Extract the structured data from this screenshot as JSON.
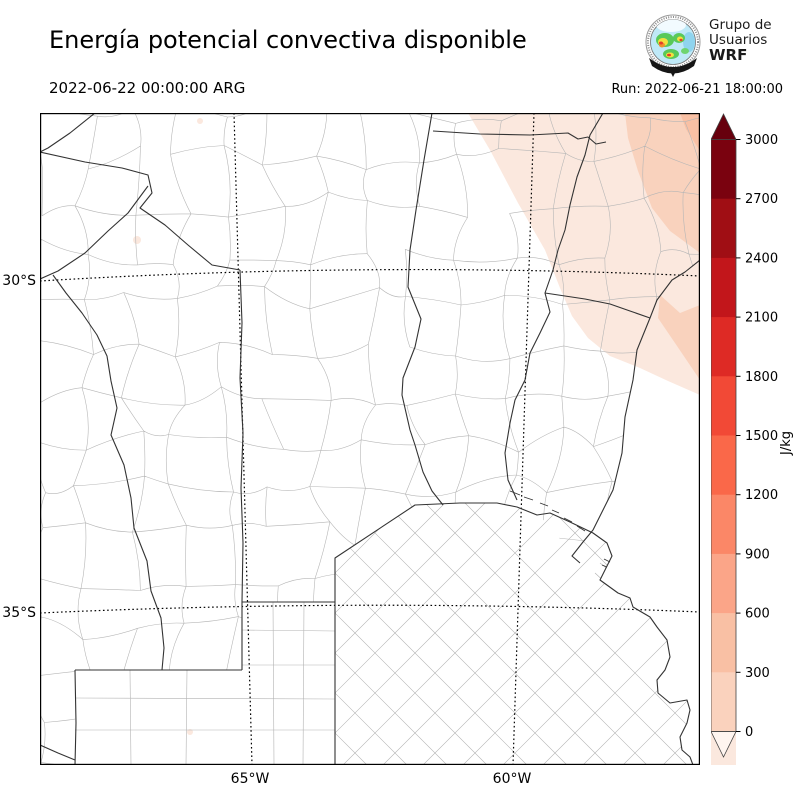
{
  "header": {
    "title": "Energía potencial convectiva disponible",
    "logo_lines": [
      "Grupo de",
      "Usuarios",
      "WRF"
    ]
  },
  "subheader": {
    "valid_time": "2022-06-22 00:00:00 ARG",
    "run_time": "Run: 2022-06-21 18:00:00"
  },
  "map": {
    "lat_labels": [
      "30°S",
      "35°S"
    ],
    "lon_labels": [
      "65°W",
      "60°W"
    ]
  },
  "colorbar": {
    "unit": "J/kg",
    "ticks": [
      3000,
      2700,
      2400,
      2100,
      1800,
      1500,
      1200,
      900,
      600,
      300,
      0
    ],
    "segment_colors_top_to_bottom": [
      "#7a020f",
      "#a00e14",
      "#c2161b",
      "#de2a25",
      "#f24936",
      "#fa6849",
      "#fb8767",
      "#fba588",
      "#f9c0a4",
      "#fad2bd",
      "#fbe8de"
    ],
    "over_color": "#67000d",
    "under_color": "#fff5f0",
    "extend": "both"
  },
  "chart_data": {
    "type": "heatmap",
    "title": "Energía potencial convectiva disponible",
    "subtitle_left": "2022-06-22 00:00:00 ARG",
    "subtitle_right": "Run: 2022-06-21 18:00:00",
    "variable": "CAPE (convective available potential energy)",
    "units": "J/kg",
    "levels": [
      0,
      300,
      600,
      900,
      1200,
      1500,
      1800,
      2100,
      2400,
      2700,
      3000
    ],
    "colormap": "Reds (discrete, extend both)",
    "colorbar_label": "J/kg",
    "x_ticks": [
      "65°W",
      "60°W"
    ],
    "y_ticks": [
      "30°S",
      "35°S"
    ],
    "approx_extent": {
      "lon": [
        -69.1,
        -56.4
      ],
      "lat": [
        -27.5,
        -37.4
      ]
    },
    "grid": "dotted graticule at 30°S, 35°S, 65°W, 60°W",
    "basemap": "Argentina provinces (dark lines) and departments (light gray lines); Paraná and Uruguay rivers; Buenos Aires Atlantic coast",
    "field_regions": [
      {
        "area": "northeast corner (N Entre Ríos / S Corrientes / NE Santa Fe)",
        "value_range": [
          0,
          300
        ]
      },
      {
        "area": "far northeast corner patches",
        "value_range": [
          300,
          600
        ]
      },
      {
        "area": "extreme NE corner tip",
        "value_range": [
          600,
          900
        ]
      },
      {
        "area": "small speck near La Rioja (~66.9W,31.9S)",
        "value_range": [
          0,
          300
        ]
      },
      {
        "area": "small speck in central La Pampa (~66.2W,36.9S)",
        "value_range": [
          0,
          300
        ]
      },
      {
        "area": "rest of domain",
        "value_range": [
          0,
          0
        ]
      }
    ],
    "legend_position": "right vertical colorbar with up/down extend arrows"
  }
}
